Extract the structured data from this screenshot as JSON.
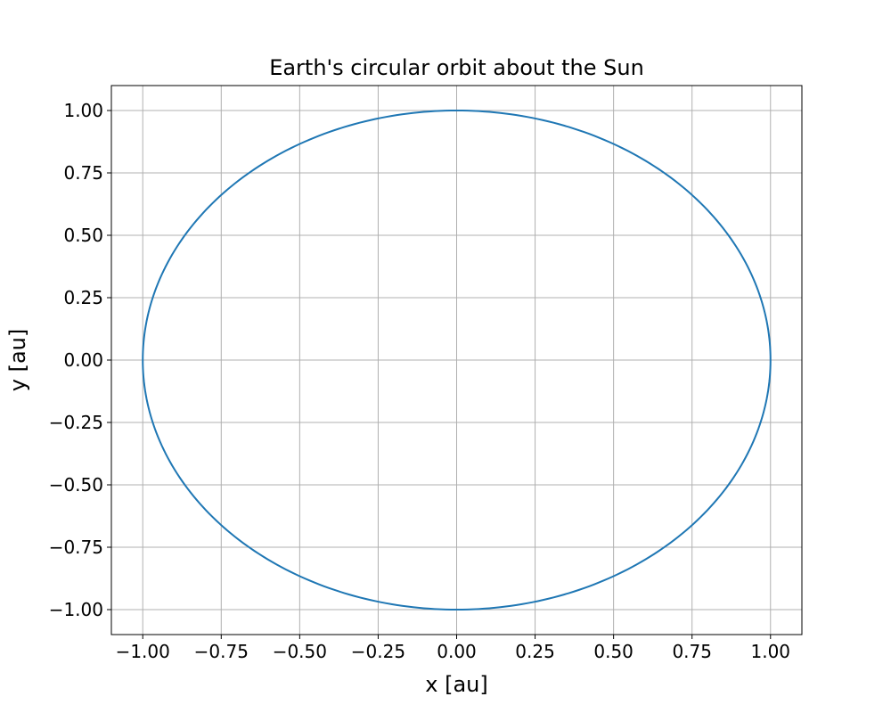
{
  "chart_data": {
    "type": "line",
    "title": "Earth's circular orbit about the Sun",
    "xlabel": "x [au]",
    "ylabel": "y [au]",
    "xlim": [
      -1.1,
      1.1
    ],
    "ylim": [
      -1.1,
      1.1
    ],
    "grid": true,
    "xticks": [
      -1.0,
      -0.75,
      -0.5,
      -0.25,
      0.0,
      0.25,
      0.5,
      0.75,
      1.0
    ],
    "yticks": [
      -1.0,
      -0.75,
      -0.5,
      -0.25,
      0.0,
      0.25,
      0.5,
      0.75,
      1.0
    ],
    "xtick_labels": [
      "−1.00",
      "−0.75",
      "−0.50",
      "−0.25",
      "0.00",
      "0.25",
      "0.50",
      "0.75",
      "1.00"
    ],
    "ytick_labels": [
      "−1.00",
      "−0.75",
      "−0.50",
      "−0.25",
      "0.00",
      "0.25",
      "0.50",
      "0.75",
      "1.00"
    ],
    "series": [
      {
        "color": "#1f77b4",
        "shape": "circle",
        "center": [
          0.0,
          0.0
        ],
        "radius": 1.0,
        "x": [
          1.0,
          0.866,
          0.5,
          0.0,
          -0.5,
          -0.866,
          -1.0,
          -0.866,
          -0.5,
          0.0,
          0.5,
          0.866,
          1.0
        ],
        "y": [
          0.0,
          0.5,
          0.866,
          1.0,
          0.866,
          0.5,
          0.0,
          -0.5,
          -0.866,
          -1.0,
          -0.866,
          -0.5,
          0.0
        ]
      }
    ]
  }
}
